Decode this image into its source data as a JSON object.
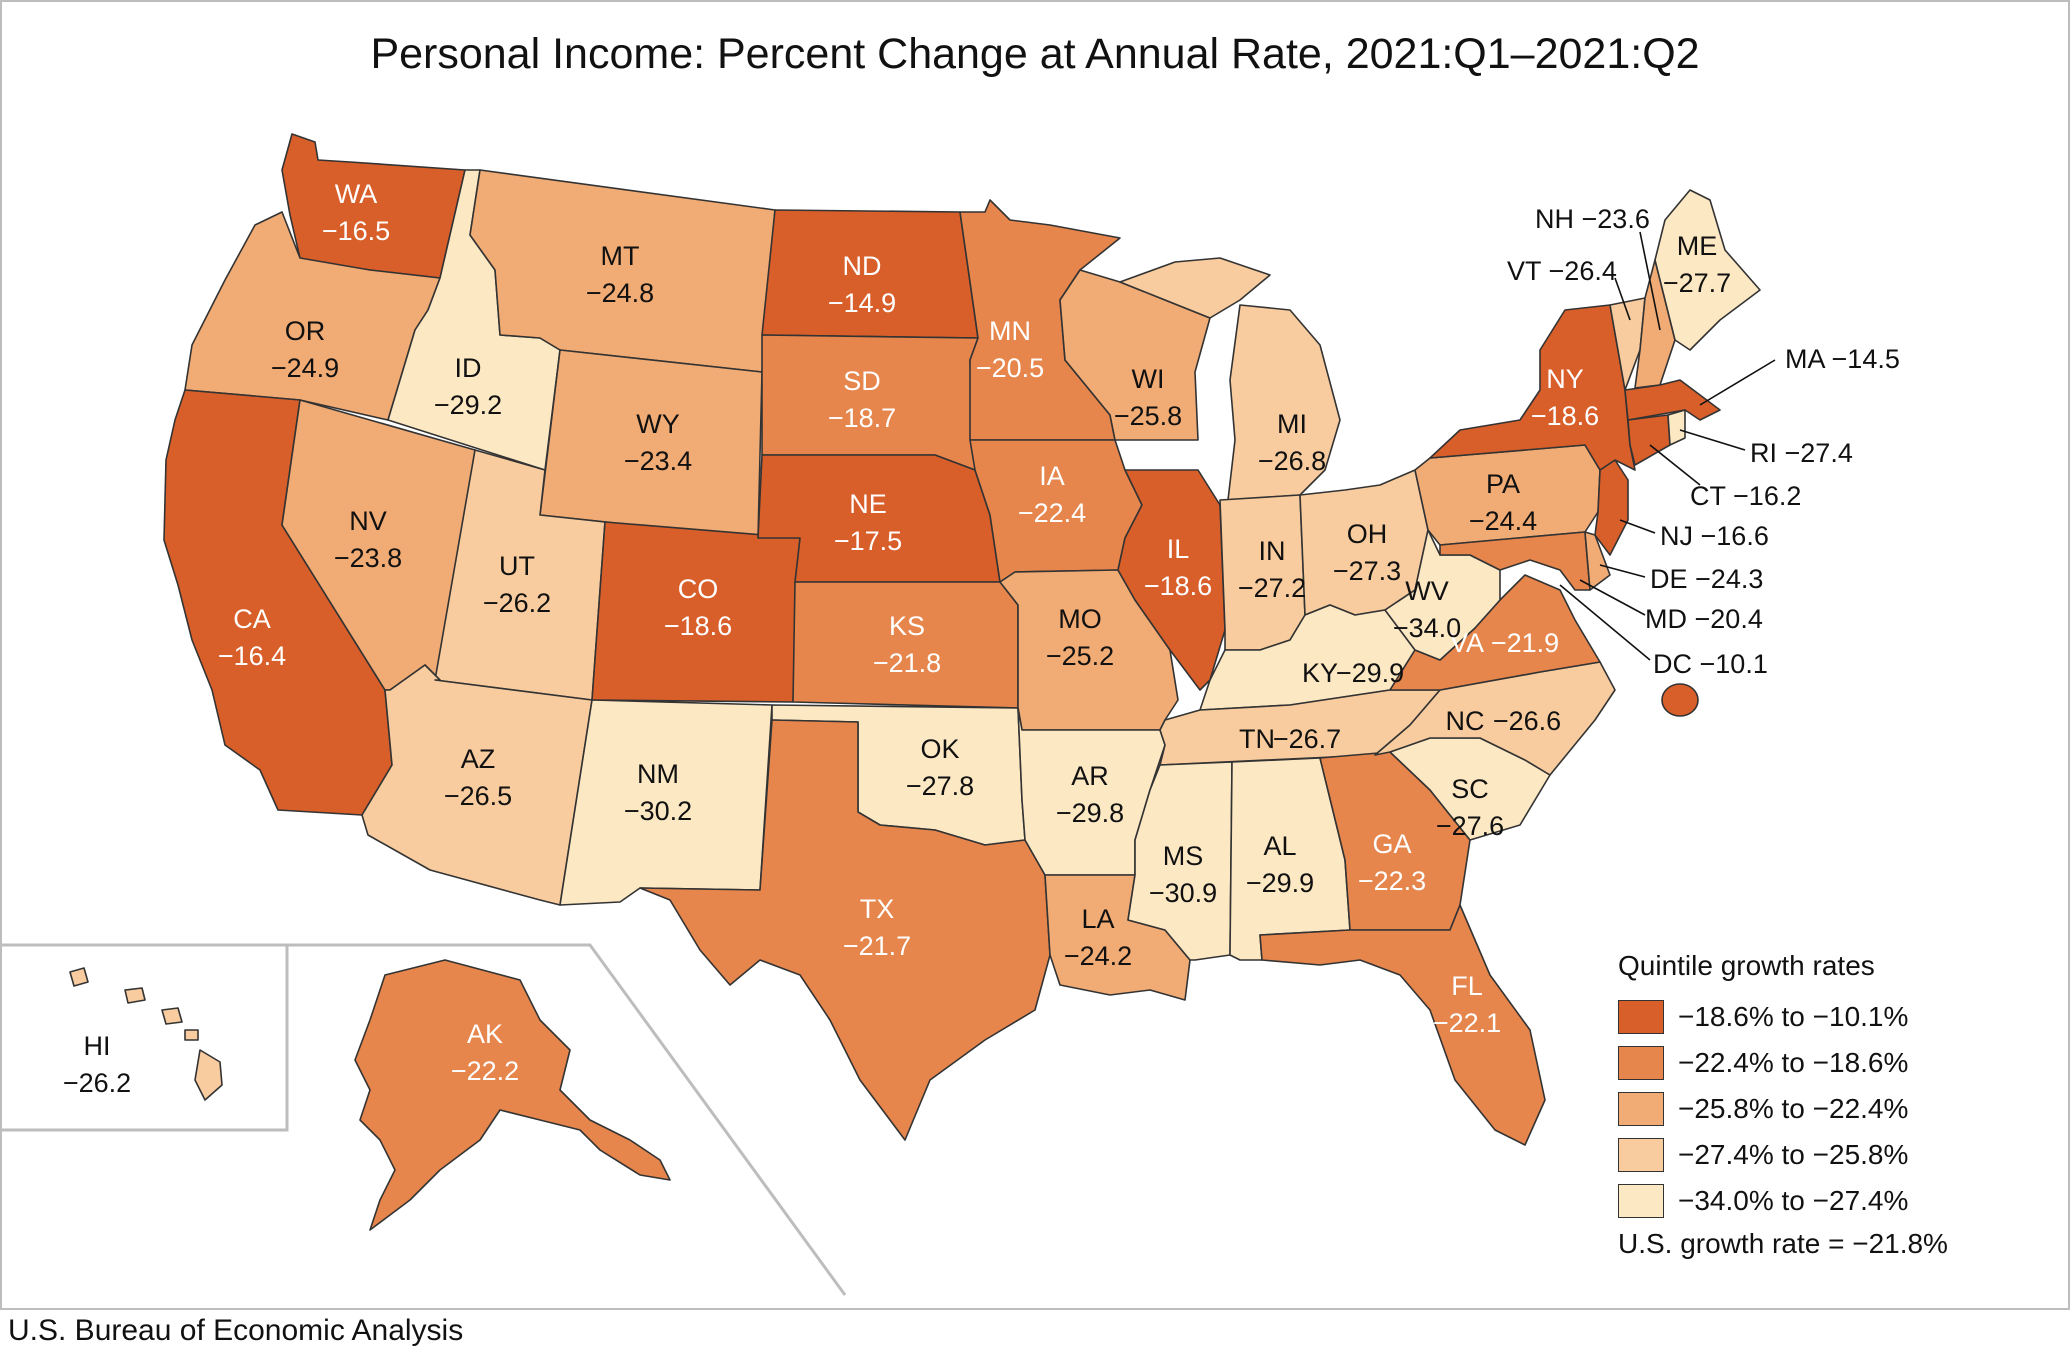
{
  "title": "Personal Income: Percent Change at Annual Rate, 2021:Q1–2021:Q2",
  "source": "U.S. Bureau of Economic Analysis",
  "legend": {
    "title": "Quintile growth rates",
    "items": [
      {
        "label": "−18.6% to −10.1%",
        "color": "#d95f2a"
      },
      {
        "label": "−22.4% to −18.6%",
        "color": "#e6864c"
      },
      {
        "label": "−25.8% to −22.4%",
        "color": "#f1ab74"
      },
      {
        "label": "−27.4% to −25.8%",
        "color": "#f8cc9e"
      },
      {
        "label": "−34.0% to −27.4%",
        "color": "#fde8c4"
      }
    ],
    "us_rate": "U.S. growth rate = −21.8%"
  },
  "states": {
    "WA": {
      "abbr": "WA",
      "value": "−16.5"
    },
    "OR": {
      "abbr": "OR",
      "value": "−24.9"
    },
    "CA": {
      "abbr": "CA",
      "value": "−16.4"
    },
    "ID": {
      "abbr": "ID",
      "value": "−29.2"
    },
    "NV": {
      "abbr": "NV",
      "value": "−23.8"
    },
    "MT": {
      "abbr": "MT",
      "value": "−24.8"
    },
    "WY": {
      "abbr": "WY",
      "value": "−23.4"
    },
    "UT": {
      "abbr": "UT",
      "value": "−26.2"
    },
    "AZ": {
      "abbr": "AZ",
      "value": "−26.5"
    },
    "CO": {
      "abbr": "CO",
      "value": "−18.6"
    },
    "NM": {
      "abbr": "NM",
      "value": "−30.2"
    },
    "ND": {
      "abbr": "ND",
      "value": "−14.9"
    },
    "SD": {
      "abbr": "SD",
      "value": "−18.7"
    },
    "NE": {
      "abbr": "NE",
      "value": "−17.5"
    },
    "KS": {
      "abbr": "KS",
      "value": "−21.8"
    },
    "OK": {
      "abbr": "OK",
      "value": "−27.8"
    },
    "TX": {
      "abbr": "TX",
      "value": "−21.7"
    },
    "MN": {
      "abbr": "MN",
      "value": "−20.5"
    },
    "IA": {
      "abbr": "IA",
      "value": "−22.4"
    },
    "MO": {
      "abbr": "MO",
      "value": "−25.2"
    },
    "AR": {
      "abbr": "AR",
      "value": "−29.8"
    },
    "LA": {
      "abbr": "LA",
      "value": "−24.2"
    },
    "WI": {
      "abbr": "WI",
      "value": "−25.8"
    },
    "IL": {
      "abbr": "IL",
      "value": "−18.6"
    },
    "MI": {
      "abbr": "MI",
      "value": "−26.8"
    },
    "IN": {
      "abbr": "IN",
      "value": "−27.2"
    },
    "OH": {
      "abbr": "OH",
      "value": "−27.3"
    },
    "KY": {
      "abbr": "KY",
      "value": "−29.9"
    },
    "TN": {
      "abbr": "TN",
      "value": "−26.7"
    },
    "MS": {
      "abbr": "MS",
      "value": "−30.9"
    },
    "AL": {
      "abbr": "AL",
      "value": "−29.9"
    },
    "GA": {
      "abbr": "GA",
      "value": "−22.3"
    },
    "FL": {
      "abbr": "FL",
      "value": "−22.1"
    },
    "SC": {
      "abbr": "SC",
      "value": "−27.6"
    },
    "NC": {
      "abbr": "NC",
      "value": "−26.6"
    },
    "VA": {
      "abbr": "VA",
      "value": "−21.9"
    },
    "WV": {
      "abbr": "WV",
      "value": "−34.0"
    },
    "PA": {
      "abbr": "PA",
      "value": "−24.4"
    },
    "NY": {
      "abbr": "NY",
      "value": "−18.6"
    },
    "VT": {
      "abbr": "VT",
      "value": "−26.4"
    },
    "NH": {
      "abbr": "NH",
      "value": "−23.6"
    },
    "ME": {
      "abbr": "ME",
      "value": "−27.7"
    },
    "MA": {
      "abbr": "MA",
      "value": "−14.5"
    },
    "RI": {
      "abbr": "RI",
      "value": "−27.4"
    },
    "CT": {
      "abbr": "CT",
      "value": "−16.2"
    },
    "NJ": {
      "abbr": "NJ",
      "value": "−16.6"
    },
    "DE": {
      "abbr": "DE",
      "value": "−24.3"
    },
    "MD": {
      "abbr": "MD",
      "value": "−20.4"
    },
    "DC": {
      "abbr": "DC",
      "value": "−10.1"
    },
    "AK": {
      "abbr": "AK",
      "value": "−22.2"
    },
    "HI": {
      "abbr": "HI",
      "value": "−26.2"
    }
  }
}
